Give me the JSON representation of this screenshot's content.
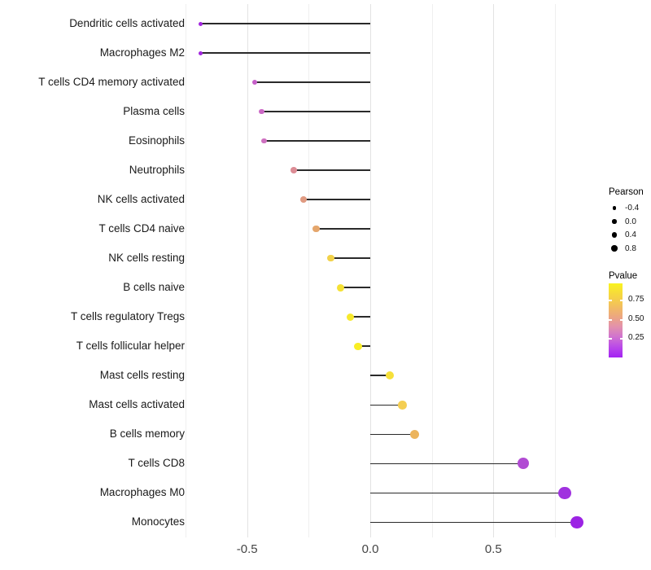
{
  "chart_data": {
    "type": "lollipop",
    "title": "",
    "xlabel": "",
    "ylabel": "",
    "x_axis": {
      "range": [
        -0.77,
        0.92
      ],
      "ticks": [
        {
          "label": "-0.5",
          "value": -0.5
        },
        {
          "label": "0.0",
          "value": 0.0
        },
        {
          "label": "0.5",
          "value": 0.5
        }
      ],
      "gridlines_major": [
        -0.5,
        0.0,
        0.5
      ],
      "gridlines_minor": [
        -0.75,
        -0.25,
        0.25,
        0.75
      ]
    },
    "baseline_value": 0.0,
    "rows": [
      {
        "label": "Dendritic cells activated",
        "pearson": -0.69,
        "dot_color": "#a226de"
      },
      {
        "label": "Macrophages M2",
        "pearson": -0.69,
        "dot_color": "#a226de"
      },
      {
        "label": "T cells CD4 memory activated",
        "pearson": -0.47,
        "dot_color": "#c55fc8"
      },
      {
        "label": "Plasma cells",
        "pearson": -0.44,
        "dot_color": "#cb68c5"
      },
      {
        "label": "Eosinophils",
        "pearson": -0.43,
        "dot_color": "#ce70c0"
      },
      {
        "label": "Neutrophils",
        "pearson": -0.31,
        "dot_color": "#dc8c95"
      },
      {
        "label": "NK cells activated",
        "pearson": -0.27,
        "dot_color": "#e09a81"
      },
      {
        "label": "T cells CD4 naive",
        "pearson": -0.22,
        "dot_color": "#e5a66c"
      },
      {
        "label": "NK cells resting",
        "pearson": -0.16,
        "dot_color": "#f2d24a"
      },
      {
        "label": "B cells naive",
        "pearson": -0.12,
        "dot_color": "#f5e134"
      },
      {
        "label": "T cells regulatory  Tregs",
        "pearson": -0.08,
        "dot_color": "#f7e92c"
      },
      {
        "label": "T cells follicular helper",
        "pearson": -0.05,
        "dot_color": "#f9ee25"
      },
      {
        "label": "Mast cells resting",
        "pearson": 0.08,
        "dot_color": "#f6e03a"
      },
      {
        "label": "Mast cells activated",
        "pearson": 0.13,
        "dot_color": "#f4ce52"
      },
      {
        "label": "B cells memory",
        "pearson": 0.18,
        "dot_color": "#ecb45c"
      },
      {
        "label": "T cells CD8",
        "pearson": 0.62,
        "dot_color": "#b14bd3"
      },
      {
        "label": "Macrophages M0",
        "pearson": 0.79,
        "dot_color": "#a032df"
      },
      {
        "label": "Monocytes",
        "pearson": 0.84,
        "dot_color": "#9c23e4"
      }
    ]
  },
  "legend": {
    "size_legend": {
      "title": "Pearson",
      "entries": [
        "-0.4",
        "0.0",
        "0.4",
        "0.8"
      ],
      "dot_color": "#000000"
    },
    "color_legend": {
      "title": "Pvalue",
      "tick_labels": [
        "0.75",
        "0.50",
        "0.25"
      ],
      "gradient_top": "#f9f31f",
      "gradient_mid": "#e392ab",
      "gradient_bottom": "#a322f2"
    }
  },
  "colors": {
    "background": "#ffffff",
    "stem_line": "#2a2a2a",
    "grid_major": "#e3e3e3",
    "grid_minor": "#efefef",
    "axis_text": "#454545",
    "label_text": "#1a1a1a"
  }
}
